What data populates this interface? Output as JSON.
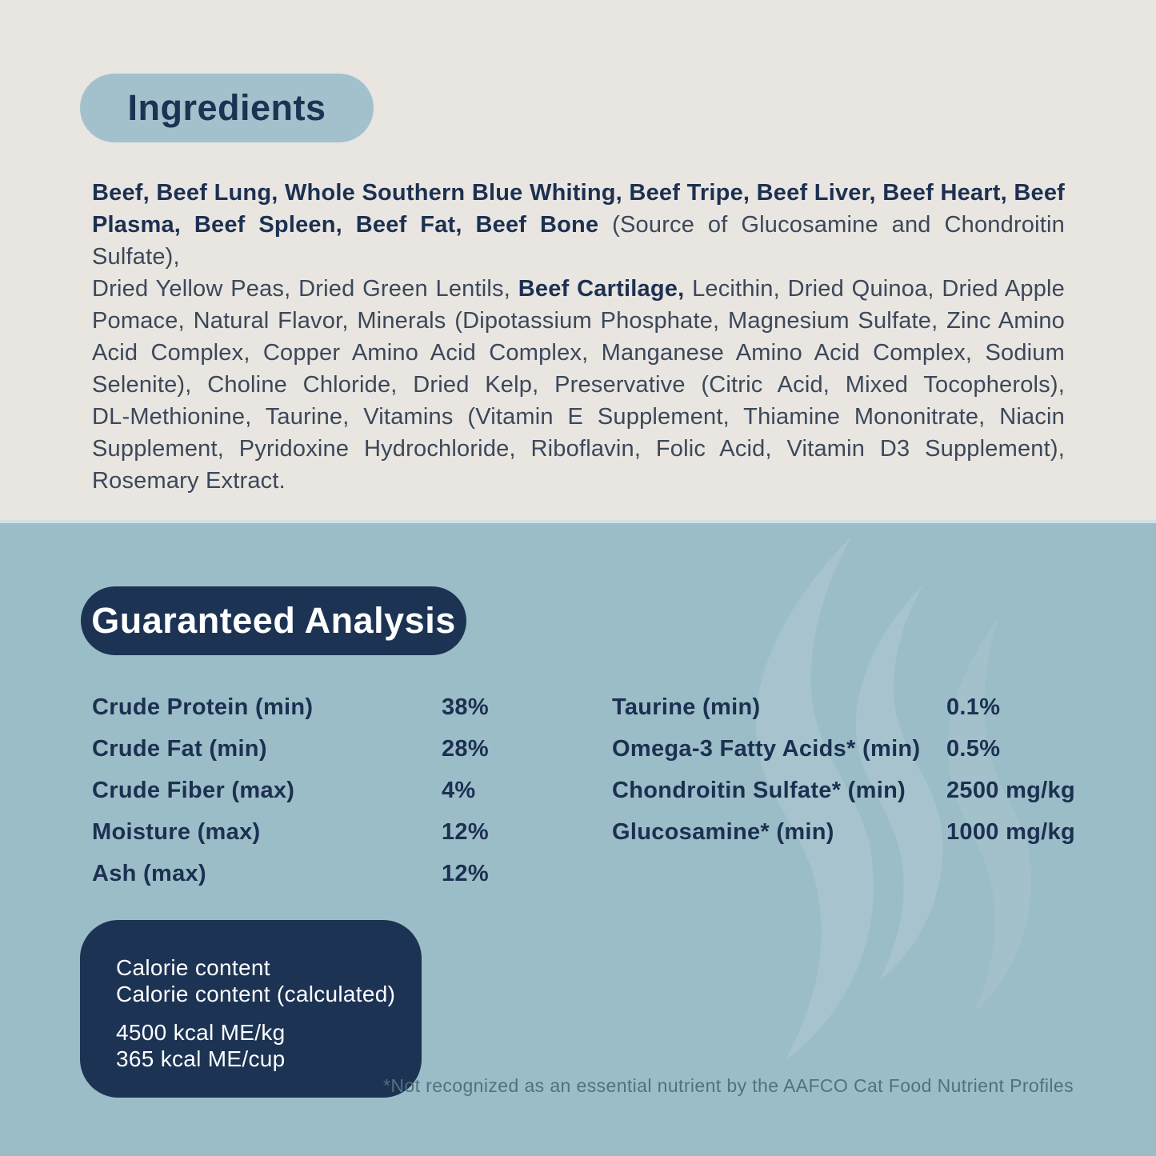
{
  "colors": {
    "top_background": "#e9e5e1",
    "bottom_background": "#9bbdc8",
    "navy": "#1c3354",
    "heading_pill_blue": "#a2c1cc",
    "body_text": "#3b4859",
    "bold_text": "#1c3051",
    "footnote_text": "#54707d",
    "watermark": "#a7c4ce",
    "watermark_faint": "#a3c1cb",
    "white": "#ffffff"
  },
  "ingredients": {
    "title": "Ingredients",
    "lines": [
      {
        "last": false,
        "segments": [
          {
            "bold": true,
            "text": "Beef, Beef Lung, Whole Southern Blue Whiting, Beef Tripe, Beef Liver, Beef Heart, Beef"
          }
        ]
      },
      {
        "last": false,
        "segments": [
          {
            "bold": true,
            "text": "Plasma, Beef Spleen, Beef Fat, Beef Bone "
          },
          {
            "bold": false,
            "text": "(Source of Glucosamine and Chondroitin Sulfate),"
          }
        ]
      },
      {
        "last": false,
        "segments": [
          {
            "bold": false,
            "text": "Dried Yellow Peas, Dried Green Lentils, "
          },
          {
            "bold": true,
            "text": "Beef Cartilage, "
          },
          {
            "bold": false,
            "text": "Lecithin, Dried Quinoa, Dried Apple"
          }
        ]
      },
      {
        "last": false,
        "segments": [
          {
            "bold": false,
            "text": "Pomace, Natural Flavor, Minerals (Dipotassium Phosphate, Magnesium Sulfate, Zinc Amino"
          }
        ]
      },
      {
        "last": false,
        "segments": [
          {
            "bold": false,
            "text": "Acid Complex, Copper Amino Acid Complex, Manganese Amino Acid Complex, Sodium"
          }
        ]
      },
      {
        "last": false,
        "segments": [
          {
            "bold": false,
            "text": "Selenite), Choline Chloride, Dried Kelp, Preservative (Citric Acid, Mixed Tocopherols),"
          }
        ]
      },
      {
        "last": false,
        "segments": [
          {
            "bold": false,
            "text": "DL-Methionine, Taurine, Vitamins (Vitamin E Supplement, Thiamine Mononitrate, Niacin"
          }
        ]
      },
      {
        "last": false,
        "segments": [
          {
            "bold": false,
            "text": "Supplement, Pyridoxine Hydrochloride, Riboflavin, Folic Acid, Vitamin D3 Supplement),"
          }
        ]
      },
      {
        "last": true,
        "segments": [
          {
            "bold": false,
            "text": "Rosemary Extract."
          }
        ]
      }
    ]
  },
  "guaranteed_analysis": {
    "title": "Guaranteed Analysis",
    "left_rows": [
      {
        "label": "Crude Protein (min)",
        "value": "38%"
      },
      {
        "label": "Crude Fat (min)",
        "value": "28%"
      },
      {
        "label": "Crude Fiber (max)",
        "value": "4%"
      },
      {
        "label": "Moisture (max)",
        "value": "12%"
      },
      {
        "label": "Ash (max)",
        "value": "12%"
      }
    ],
    "right_rows": [
      {
        "label": "Taurine (min)",
        "value": "0.1%"
      },
      {
        "label": "Omega-3 Fatty Acids* (min)",
        "value": "0.5%"
      },
      {
        "label": "Chondroitin Sulfate* (min)",
        "value": "2500 mg/kg"
      },
      {
        "label": "Glucosamine* (min)",
        "value": "1000 mg/kg"
      }
    ],
    "calorie_box": {
      "lines": [
        "Calorie content",
        "Calorie content (calculated)",
        "4500 kcal ME/kg",
        "365 kcal ME/cup"
      ]
    },
    "footnote": "*Not recognized as an essential nutrient by the AAFCO Cat Food Nutrient Profiles"
  }
}
